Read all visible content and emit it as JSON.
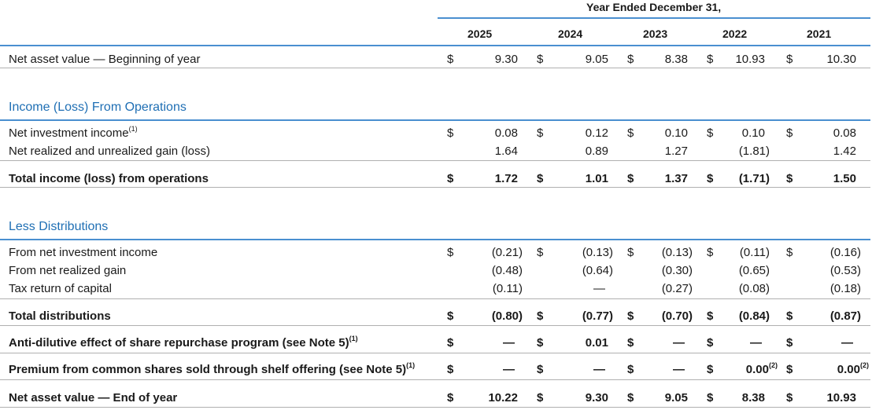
{
  "header": {
    "period": "Year Ended December 31,",
    "years": [
      "2025",
      "2024",
      "2023",
      "2022",
      "2021"
    ]
  },
  "currency": "$",
  "sections": {
    "income": "Income (Loss) From Operations",
    "distributions": "Less Distributions"
  },
  "rows": {
    "nav_begin": {
      "label": "Net asset value — Beginning of year",
      "values": [
        "9.30",
        "9.05",
        "8.38",
        "10.93",
        "10.30"
      ]
    },
    "nii": {
      "label": "Net investment income",
      "note": "(1)",
      "values": [
        "0.08",
        "0.12",
        "0.10",
        "0.10",
        "0.08"
      ]
    },
    "gain": {
      "label": "Net realized and unrealized gain (loss)",
      "values": [
        "1.64",
        "0.89",
        "1.27",
        "(1.81)",
        "1.42"
      ]
    },
    "total_income": {
      "label": "Total income (loss) from operations",
      "values": [
        "1.72",
        "1.01",
        "1.37",
        "(1.71)",
        "1.50"
      ]
    },
    "dist_nii": {
      "label": "From net investment income",
      "values": [
        "(0.21)",
        "(0.13)",
        "(0.13)",
        "(0.11)",
        "(0.16)"
      ]
    },
    "dist_gain": {
      "label": "From net realized gain",
      "values": [
        "(0.48)",
        "(0.64)",
        "(0.30)",
        "(0.65)",
        "(0.53)"
      ]
    },
    "tax_return": {
      "label": "Tax return of capital",
      "values": [
        "(0.11)",
        "—",
        "(0.27)",
        "(0.08)",
        "(0.18)"
      ]
    },
    "total_dist": {
      "label": "Total distributions",
      "values": [
        "(0.80)",
        "(0.77)",
        "(0.70)",
        "(0.84)",
        "(0.87)"
      ]
    },
    "anti_dilutive": {
      "label": "Anti-dilutive effect of share repurchase program (see Note 5)",
      "note": "(1)",
      "values": [
        "—",
        "0.01",
        "—",
        "—",
        "—"
      ]
    },
    "premium": {
      "label": "Premium from common shares sold through shelf offering (see Note 5)",
      "note": "(1)",
      "values": [
        "—",
        "—",
        "—",
        "0.00",
        "0.00"
      ],
      "value_notes": [
        "",
        "",
        "",
        "(2)",
        "(2)"
      ]
    },
    "nav_end": {
      "label": "Net asset value — End of year",
      "values": [
        "10.22",
        "9.30",
        "9.05",
        "8.38",
        "10.93"
      ]
    }
  }
}
